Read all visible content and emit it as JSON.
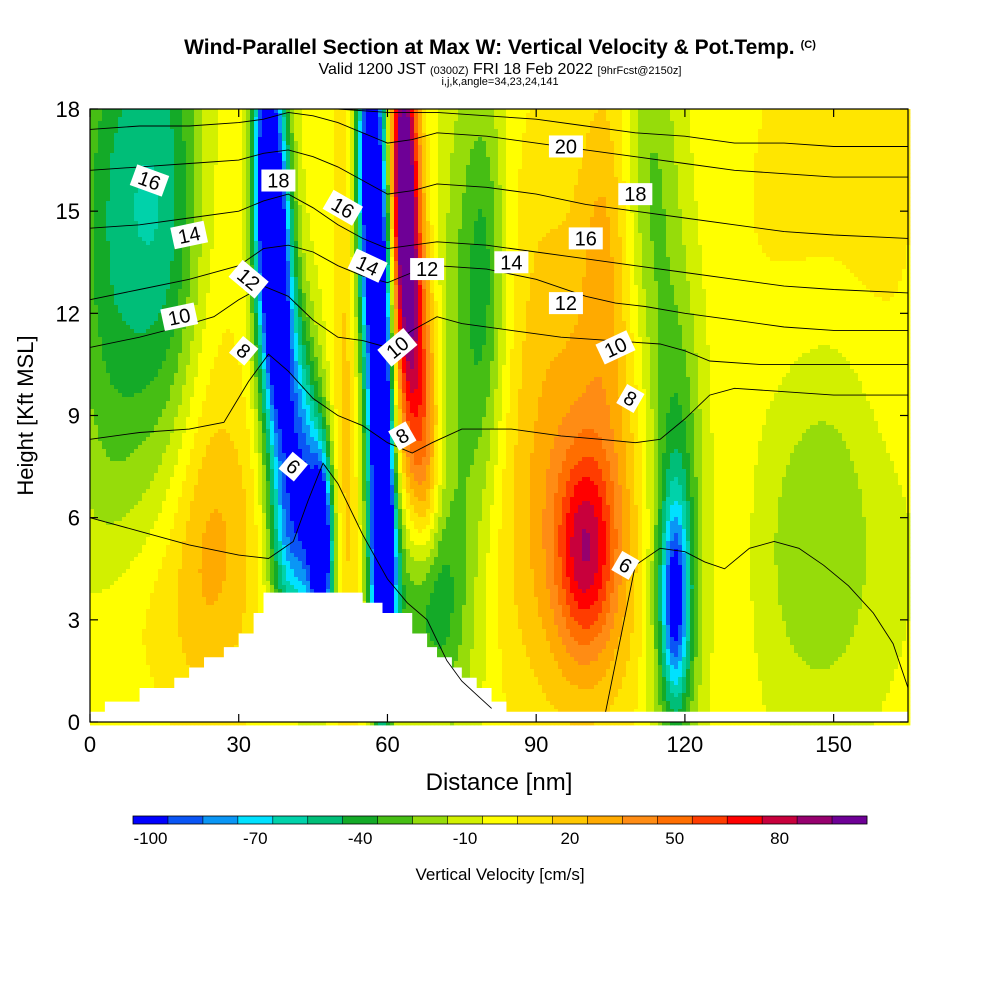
{
  "header": {
    "title": "Wind-Parallel Section at Max W: Vertical Velocity & Pot.Temp.",
    "copyright": "(C)",
    "valid_prefix": "Valid 1200 JST",
    "valid_utc": "(0300Z)",
    "valid_date": "FRI 18 Feb 2022",
    "forecast": "[9hrFcst@2150z]",
    "indices": "i,j,k,angle=34,23,24,141"
  },
  "chart_data": {
    "type": "heatmap",
    "xlabel": "Distance [nm]",
    "ylabel": "Height [Kft MSL]",
    "xlim": [
      0,
      165
    ],
    "ylim": [
      0,
      18
    ],
    "x_ticks": [
      "0",
      "30",
      "60",
      "90",
      "120",
      "150"
    ],
    "y_ticks": [
      "0",
      "3",
      "6",
      "9",
      "12",
      "15",
      "18"
    ],
    "x_tick_values": [
      0,
      30,
      60,
      90,
      120,
      150
    ],
    "y_tick_values": [
      0,
      3,
      6,
      9,
      12,
      15,
      18
    ],
    "colorbar": {
      "label": "Vertical Velocity [cm/s]",
      "tick_labels": [
        "-100",
        "-70",
        "-40",
        "-10",
        "20",
        "50",
        "80"
      ],
      "tick_values": [
        -100,
        -70,
        -40,
        -10,
        20,
        50,
        80
      ],
      "levels": [
        -100,
        -90,
        -80,
        -70,
        -60,
        -50,
        -40,
        -30,
        -20,
        -10,
        0,
        10,
        20,
        30,
        40,
        50,
        60,
        70,
        80,
        90,
        100
      ],
      "colors": [
        "#0000ff",
        "#0a55f5",
        "#0a96f5",
        "#00e1ff",
        "#00d2aa",
        "#00be78",
        "#14aa28",
        "#46be14",
        "#96dc0a",
        "#d2f000",
        "#ffff00",
        "#ffe600",
        "#ffc800",
        "#ffaa00",
        "#ff8c14",
        "#ff6e00",
        "#ff3c00",
        "#ff0000",
        "#c8003c",
        "#96006e",
        "#6e0096"
      ]
    },
    "terrain_profile_x": [
      0,
      3,
      3,
      10,
      10,
      17,
      17,
      20,
      20,
      23,
      23,
      27,
      27,
      30,
      30,
      33,
      33,
      35,
      35,
      55,
      55,
      59,
      59,
      65,
      65,
      68,
      68,
      70,
      70,
      73,
      73,
      75,
      75,
      78,
      78,
      81,
      81,
      84,
      84,
      165
    ],
    "terrain_profile_kft": [
      0.3,
      0.3,
      0.6,
      0.6,
      1.0,
      1.0,
      1.3,
      1.3,
      1.6,
      1.6,
      1.9,
      1.9,
      2.2,
      2.2,
      2.6,
      2.6,
      3.2,
      3.2,
      3.8,
      3.8,
      3.5,
      3.5,
      3.2,
      3.2,
      2.6,
      2.6,
      2.2,
      2.2,
      1.9,
      1.9,
      1.6,
      1.6,
      1.3,
      1.3,
      1.0,
      1.0,
      0.6,
      0.6,
      0.3,
      0.3
    ],
    "velocity_field": [
      {
        "x": 4,
        "y": 12.0,
        "sx": 7,
        "sy": 7,
        "value": -18
      },
      {
        "x": 10,
        "y": 16.0,
        "sx": 8,
        "sy": 5,
        "value": -28
      },
      {
        "x": 17,
        "y": 14.0,
        "sx": 5,
        "sy": 6,
        "value": -22
      },
      {
        "x": 22,
        "y": 9.0,
        "sx": 6,
        "sy": 7,
        "value": 18
      },
      {
        "x": 25,
        "y": 5.0,
        "sx": 8,
        "sy": 3,
        "value": 25
      },
      {
        "x": 8,
        "y": 3.0,
        "sx": 8,
        "sy": 2,
        "value": 15
      },
      {
        "x": 35,
        "y": 16.5,
        "sx": 2,
        "sy": 4,
        "value": -70
      },
      {
        "x": 37,
        "y": 14.0,
        "sx": 2,
        "sy": 4,
        "value": -80
      },
      {
        "x": 39,
        "y": 11.0,
        "sx": 2,
        "sy": 4,
        "value": -60
      },
      {
        "x": 42,
        "y": 8.0,
        "sx": 2,
        "sy": 3,
        "value": -50
      },
      {
        "x": 45,
        "y": 6.0,
        "sx": 2,
        "sy": 3,
        "value": -55
      },
      {
        "x": 47,
        "y": 5.0,
        "sx": 1.5,
        "sy": 2,
        "value": -100
      },
      {
        "x": 40,
        "y": 5.0,
        "sx": 3,
        "sy": 2,
        "value": -35
      },
      {
        "x": 52,
        "y": 10.0,
        "sx": 2,
        "sy": 8,
        "value": 25
      },
      {
        "x": 56,
        "y": 16.5,
        "sx": 2,
        "sy": 4,
        "value": -80
      },
      {
        "x": 58,
        "y": 12.0,
        "sx": 2,
        "sy": 6,
        "value": -70
      },
      {
        "x": 59,
        "y": 7.0,
        "sx": 1.5,
        "sy": 5,
        "value": -90
      },
      {
        "x": 60,
        "y": 4.5,
        "sx": 2,
        "sy": 2,
        "value": -60
      },
      {
        "x": 63,
        "y": 17.0,
        "sx": 2,
        "sy": 3,
        "value": 90
      },
      {
        "x": 64,
        "y": 13.5,
        "sx": 2,
        "sy": 3,
        "value": 75
      },
      {
        "x": 66,
        "y": 10.0,
        "sx": 2.5,
        "sy": 3,
        "value": 50
      },
      {
        "x": 68,
        "y": 7.0,
        "sx": 2,
        "sy": 3,
        "value": 28
      },
      {
        "x": 68,
        "y": 3.5,
        "sx": 4,
        "sy": 2,
        "value": -40
      },
      {
        "x": 75,
        "y": 9.0,
        "sx": 4,
        "sy": 8,
        "value": -20
      },
      {
        "x": 80,
        "y": 13.0,
        "sx": 3,
        "sy": 4,
        "value": -25
      },
      {
        "x": 99,
        "y": 5.5,
        "sx": 11,
        "sy": 4,
        "value": 40
      },
      {
        "x": 100,
        "y": 5.0,
        "sx": 4,
        "sy": 2,
        "value": 55
      },
      {
        "x": 92,
        "y": 13.0,
        "sx": 6,
        "sy": 4,
        "value": 18
      },
      {
        "x": 104,
        "y": 14.0,
        "sx": 4,
        "sy": 4,
        "value": 30
      },
      {
        "x": 118,
        "y": 5.5,
        "sx": 4,
        "sy": 5,
        "value": -45
      },
      {
        "x": 118,
        "y": 3.5,
        "sx": 2,
        "sy": 2,
        "value": -65
      },
      {
        "x": 113,
        "y": 16.0,
        "sx": 4,
        "sy": 4,
        "value": -20
      },
      {
        "x": 130,
        "y": 5.0,
        "sx": 5,
        "sy": 4,
        "value": 12
      },
      {
        "x": 148,
        "y": 5.5,
        "sx": 12,
        "sy": 4,
        "value": -20
      },
      {
        "x": 138,
        "y": 12.0,
        "sx": 8,
        "sy": 4,
        "value": 10
      },
      {
        "x": 160,
        "y": 10.0,
        "sx": 6,
        "sy": 6,
        "value": 12
      },
      {
        "x": 150,
        "y": 17.0,
        "sx": 10,
        "sy": 3,
        "value": 15
      }
    ],
    "theta_contours": [
      {
        "label": "6",
        "x": [
          0,
          10,
          20,
          30,
          36,
          41,
          44,
          47,
          50,
          55,
          60,
          64,
          68,
          70,
          72,
          75,
          78,
          81
        ],
        "y": [
          6.0,
          5.6,
          5.2,
          4.9,
          4.8,
          5.3,
          6.5,
          7.6,
          7.0,
          5.5,
          4.2,
          3.5,
          3.0,
          2.4,
          1.8,
          1.2,
          0.8,
          0.4
        ]
      },
      {
        "label": "6",
        "x": [
          104,
          110,
          115,
          120,
          124,
          128,
          133,
          138,
          143,
          148,
          153,
          158,
          162,
          165
        ],
        "y": [
          0.3,
          4.6,
          5.1,
          5.0,
          4.7,
          4.5,
          5.1,
          5.3,
          5.1,
          4.6,
          4.0,
          3.2,
          2.3,
          1.0
        ]
      },
      {
        "label": "8",
        "x": [
          0,
          10,
          20,
          27,
          32,
          36,
          40,
          45,
          50,
          55,
          60,
          65,
          69,
          75,
          85,
          95,
          103,
          110,
          115,
          120,
          125,
          130,
          140,
          150,
          160,
          165
        ],
        "y": [
          8.3,
          8.5,
          8.6,
          8.8,
          10.0,
          10.8,
          10.3,
          9.5,
          9.0,
          8.7,
          8.2,
          7.9,
          8.2,
          8.6,
          8.6,
          8.4,
          8.3,
          8.2,
          8.3,
          8.9,
          9.6,
          9.8,
          9.7,
          9.6,
          9.6,
          9.6
        ]
      },
      {
        "label": "10",
        "x": [
          0,
          10,
          18,
          25,
          30,
          35,
          40,
          45,
          50,
          55,
          60,
          65,
          70,
          75,
          85,
          95,
          105,
          115,
          120,
          125,
          135,
          145,
          155,
          165
        ],
        "y": [
          11.0,
          11.3,
          11.6,
          11.9,
          12.4,
          12.8,
          12.5,
          11.8,
          11.3,
          11.2,
          11.0,
          11.5,
          11.9,
          11.7,
          11.5,
          11.3,
          11.2,
          11.1,
          10.9,
          10.6,
          10.5,
          10.5,
          10.5,
          10.5
        ]
      },
      {
        "label": "12",
        "x": [
          0,
          10,
          20,
          30,
          35,
          40,
          45,
          50,
          55,
          60,
          65,
          70,
          80,
          90,
          100,
          106,
          112,
          120,
          130,
          140,
          150,
          165
        ],
        "y": [
          12.4,
          12.7,
          13.0,
          13.4,
          13.9,
          14.0,
          13.8,
          13.4,
          13.1,
          12.9,
          13.2,
          13.4,
          13.3,
          13.0,
          12.5,
          12.3,
          12.2,
          12.0,
          11.8,
          11.6,
          11.5,
          11.5
        ]
      },
      {
        "label": "14",
        "x": [
          0,
          10,
          20,
          30,
          35,
          40,
          45,
          50,
          55,
          60,
          65,
          70,
          80,
          90,
          100,
          110,
          120,
          130,
          140,
          150,
          165
        ],
        "y": [
          14.5,
          14.6,
          14.8,
          15.0,
          15.3,
          15.5,
          15.1,
          14.6,
          14.2,
          13.9,
          14.0,
          14.1,
          14.0,
          13.8,
          13.6,
          13.4,
          13.2,
          13.0,
          12.8,
          12.7,
          12.6
        ]
      },
      {
        "label": "16",
        "x": [
          0,
          10,
          20,
          30,
          35,
          40,
          45,
          50,
          55,
          60,
          65,
          70,
          80,
          90,
          100,
          110,
          120,
          130,
          140,
          150,
          165
        ],
        "y": [
          16.2,
          16.3,
          16.4,
          16.5,
          16.7,
          16.8,
          16.6,
          16.3,
          15.9,
          15.5,
          15.6,
          15.8,
          15.7,
          15.5,
          15.2,
          15.0,
          14.8,
          14.6,
          14.4,
          14.3,
          14.2
        ]
      },
      {
        "label": "18",
        "x": [
          0,
          10,
          20,
          30,
          35,
          40,
          45,
          50,
          55,
          60,
          65,
          70,
          80,
          90,
          100,
          110,
          120,
          130,
          140,
          150,
          165
        ],
        "y": [
          17.4,
          17.5,
          17.5,
          17.6,
          17.7,
          17.9,
          17.8,
          17.6,
          17.3,
          17.0,
          17.1,
          17.3,
          17.2,
          17.0,
          16.8,
          16.6,
          16.4,
          16.2,
          16.1,
          16.0,
          16.0
        ]
      },
      {
        "label": "20",
        "x": [
          0,
          10,
          30,
          50,
          60,
          70,
          80,
          90,
          100,
          110,
          120,
          130,
          140,
          150,
          165
        ],
        "y": [
          18.0,
          18.0,
          18.0,
          18.0,
          17.9,
          17.9,
          17.8,
          17.7,
          17.5,
          17.3,
          17.2,
          17.0,
          17.0,
          16.9,
          16.9
        ]
      }
    ],
    "contour_labels": [
      {
        "text": "16",
        "x": 12,
        "y": 15.9,
        "angle": 20
      },
      {
        "text": "14",
        "x": 20,
        "y": 14.3,
        "angle": -12
      },
      {
        "text": "10",
        "x": 18,
        "y": 11.9,
        "angle": -12
      },
      {
        "text": "8",
        "x": 31,
        "y": 10.9,
        "angle": 40
      },
      {
        "text": "12",
        "x": 32,
        "y": 13.0,
        "angle": 40
      },
      {
        "text": "18",
        "x": 38,
        "y": 15.9,
        "angle": 0
      },
      {
        "text": "6",
        "x": 41,
        "y": 7.5,
        "angle": 40
      },
      {
        "text": "16",
        "x": 51,
        "y": 15.1,
        "angle": 30
      },
      {
        "text": "14",
        "x": 56,
        "y": 13.4,
        "angle": 25
      },
      {
        "text": "10",
        "x": 62,
        "y": 11.0,
        "angle": -40
      },
      {
        "text": "12",
        "x": 68,
        "y": 13.3,
        "angle": 0
      },
      {
        "text": "8",
        "x": 63,
        "y": 8.4,
        "angle": -30
      },
      {
        "text": "14",
        "x": 85,
        "y": 13.5,
        "angle": 0
      },
      {
        "text": "20",
        "x": 96,
        "y": 16.9,
        "angle": 0
      },
      {
        "text": "16",
        "x": 100,
        "y": 14.2,
        "angle": 0
      },
      {
        "text": "12",
        "x": 96,
        "y": 12.3,
        "angle": 0
      },
      {
        "text": "18",
        "x": 110,
        "y": 15.5,
        "angle": 0
      },
      {
        "text": "10",
        "x": 106,
        "y": 11.0,
        "angle": -25
      },
      {
        "text": "8",
        "x": 109,
        "y": 9.5,
        "angle": 30
      },
      {
        "text": "6",
        "x": 108,
        "y": 4.6,
        "angle": 30
      }
    ],
    "grid": false,
    "colors": {
      "axis": "#000000",
      "contour": "#000000",
      "terrain": "#ffffff"
    }
  }
}
